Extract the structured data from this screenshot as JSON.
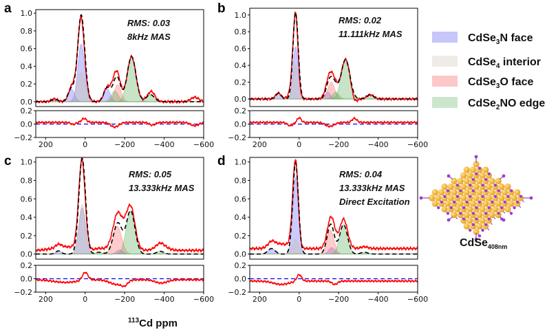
{
  "chart_data": {
    "type": "line",
    "xlabel_sup": "113",
    "xlabel": "Cd ppm",
    "xlim": [
      250,
      -600
    ],
    "xticks": [
      200,
      0,
      -200,
      -400,
      -600
    ],
    "xtick_labels": [
      "200",
      "0",
      "−200",
      "−400",
      "−600"
    ],
    "main_yticks": [
      0.0,
      0.2,
      0.4,
      0.6,
      0.8,
      1.0
    ],
    "main_ytick_labels": [
      "0.0",
      "0.2",
      "0.4",
      "0.6",
      "0.8",
      "1.0"
    ],
    "residual_yticks": [
      -0.2,
      0.0,
      0.2
    ],
    "residual_ytick_labels": [
      "−0.2",
      "0.0",
      "0.2"
    ],
    "residual_ylim": [
      -0.2,
      0.2
    ],
    "site_colors": {
      "CdSe3N face": "#6a6aff",
      "CdSe4 interior": "#c9bc9a",
      "CdSe3O face": "#ff6a6a",
      "CdSe2NO edge": "#5fb25f"
    },
    "experimental_color": "#ff0000",
    "fit_color": "#000000",
    "residual_zero_color": "#0000ff",
    "panels": [
      {
        "label": "a",
        "annotations": [
          "RMS: 0.03",
          "8kHz MAS"
        ],
        "ylim": [
          -0.055,
          1.04
        ],
        "components": [
          {
            "site": "CdSe3N face",
            "center": 20,
            "amp": 0.65,
            "sigma": 17
          },
          {
            "site": "CdSe3N face",
            "center": 70,
            "amp": 0.14,
            "sigma": 16
          },
          {
            "site": "CdSe3N face",
            "center": -110,
            "amp": 0.15,
            "sigma": 16
          },
          {
            "site": "CdSe3N face",
            "center": 155,
            "amp": 0.03,
            "sigma": 15
          },
          {
            "site": "CdSe4 interior",
            "center": 20,
            "amp": 0.33,
            "sigma": 20
          },
          {
            "site": "CdSe3O face",
            "center": -165,
            "amp": 0.19,
            "sigma": 17
          },
          {
            "site": "CdSe2NO edge",
            "center": -235,
            "amp": 0.51,
            "sigma": 22
          },
          {
            "site": "CdSe2NO edge",
            "center": -150,
            "amp": 0.12,
            "sigma": 18
          },
          {
            "site": "CdSe2NO edge",
            "center": -330,
            "amp": 0.08,
            "sigma": 20
          }
        ],
        "experimental_baseline": 0.0,
        "experimental_extra": [
          {
            "center": -150,
            "amp": 0.07,
            "sigma": 20
          },
          {
            "center": -340,
            "amp": 0.04,
            "sigma": 15
          },
          {
            "center": -555,
            "amp": 0.05,
            "sigma": 20
          },
          {
            "center": 5,
            "amp": -0.06,
            "sigma": 12
          },
          {
            "center": 60,
            "amp": 0.03,
            "sigma": 12
          }
        ]
      },
      {
        "label": "b",
        "annotations": [
          "RMS: 0.02",
          "11.111kHz MAS"
        ],
        "ylim": [
          -0.09,
          1.08
        ],
        "components": [
          {
            "site": "CdSe3N face",
            "center": 18,
            "amp": 0.62,
            "sigma": 13
          },
          {
            "site": "CdSe3N face",
            "center": 105,
            "amp": 0.07,
            "sigma": 14
          },
          {
            "site": "CdSe3N face",
            "center": -145,
            "amp": 0.08,
            "sigma": 14
          },
          {
            "site": "CdSe4 interior",
            "center": 18,
            "amp": 0.41,
            "sigma": 14
          },
          {
            "site": "CdSe3O face",
            "center": -163,
            "amp": 0.2,
            "sigma": 17
          },
          {
            "site": "CdSe2NO edge",
            "center": -235,
            "amp": 0.47,
            "sigma": 22
          },
          {
            "site": "CdSe2NO edge",
            "center": -185,
            "amp": 0.08,
            "sigma": 16
          },
          {
            "site": "CdSe2NO edge",
            "center": -360,
            "amp": 0.05,
            "sigma": 18
          }
        ],
        "experimental_baseline": 0.0,
        "experimental_extra": [
          {
            "center": -155,
            "amp": 0.06,
            "sigma": 22
          },
          {
            "center": 45,
            "amp": 0.05,
            "sigma": 14
          },
          {
            "center": 0,
            "amp": -0.07,
            "sigma": 10
          },
          {
            "center": -280,
            "amp": -0.06,
            "sigma": 12
          }
        ]
      },
      {
        "label": "c",
        "annotations": [
          "RMS: 0.05",
          "13.333kHz MAS"
        ],
        "ylim": [
          -0.055,
          1.05
        ],
        "components": [
          {
            "site": "CdSe3N face",
            "center": 15,
            "amp": 0.5,
            "sigma": 17
          },
          {
            "site": "CdSe3N face",
            "center": 135,
            "amp": 0.035,
            "sigma": 14
          },
          {
            "site": "CdSe3N face",
            "center": -175,
            "amp": 0.045,
            "sigma": 16
          },
          {
            "site": "CdSe4 interior",
            "center": 15,
            "amp": 0.54,
            "sigma": 17
          },
          {
            "site": "CdSe3O face",
            "center": -163,
            "amp": 0.3,
            "sigma": 22
          },
          {
            "site": "CdSe2NO edge",
            "center": -230,
            "amp": 0.47,
            "sigma": 22
          },
          {
            "site": "CdSe2NO edge",
            "center": -380,
            "amp": 0.03,
            "sigma": 18
          },
          {
            "site": "CdSe2NO edge",
            "center": -70,
            "amp": 0.02,
            "sigma": 18
          }
        ],
        "experimental_baseline": 0.04,
        "experimental_extra": [
          {
            "center": 100,
            "amp": 0.04,
            "sigma": 60
          },
          {
            "center": -160,
            "amp": 0.07,
            "sigma": 35
          },
          {
            "center": -200,
            "amp": 0.06,
            "sigma": 15
          },
          {
            "center": -385,
            "amp": 0.05,
            "sigma": 30
          },
          {
            "center": 0,
            "amp": -0.12,
            "sigma": 14
          }
        ]
      },
      {
        "label": "d",
        "annotations": [
          "RMS: 0.04",
          "13.333kHz MAS",
          "Direct Excitation"
        ],
        "ylim": [
          -0.055,
          1.05
        ],
        "components": [
          {
            "site": "CdSe3N face",
            "center": 18,
            "amp": 0.83,
            "sigma": 14
          },
          {
            "site": "CdSe3N face",
            "center": 140,
            "amp": 0.06,
            "sigma": 18
          },
          {
            "site": "CdSe3N face",
            "center": -165,
            "amp": 0.07,
            "sigma": 15
          },
          {
            "site": "CdSe4 interior",
            "center": 18,
            "amp": 0.16,
            "sigma": 17
          },
          {
            "site": "CdSe3O face",
            "center": -158,
            "amp": 0.26,
            "sigma": 18
          },
          {
            "site": "CdSe2NO edge",
            "center": -225,
            "amp": 0.32,
            "sigma": 20
          },
          {
            "site": "CdSe2NO edge",
            "center": -330,
            "amp": 0.02,
            "sigma": 18
          }
        ],
        "experimental_baseline": 0.06,
        "experimental_extra": [
          {
            "center": -180,
            "amp": 0.05,
            "sigma": 14
          },
          {
            "center": 90,
            "amp": 0.05,
            "sigma": 40
          },
          {
            "center": 0,
            "amp": -0.1,
            "sigma": 12
          }
        ]
      }
    ]
  },
  "legend": [
    {
      "site": "CdSe3N face",
      "prefix": "CdSe",
      "sub": "3",
      "suffix": "N face",
      "color": "#c6c6fb"
    },
    {
      "site": "CdSe4 interior",
      "prefix": "CdSe",
      "sub": "4",
      "suffix": " interior",
      "color": "#efebe6"
    },
    {
      "site": "CdSe3O face",
      "prefix": "CdSe",
      "sub": "3",
      "suffix": "O face",
      "color": "#fcc8c8"
    },
    {
      "site": "CdSe2NO edge",
      "prefix": "CdSe",
      "sub": "2",
      "suffix": "NO edge",
      "color": "#cce6cc"
    }
  ],
  "structure": {
    "label_main": "CdSe",
    "label_sub": "408nm",
    "cd_color": "#e8a11c",
    "ligand_color": "#9b3fd0"
  }
}
